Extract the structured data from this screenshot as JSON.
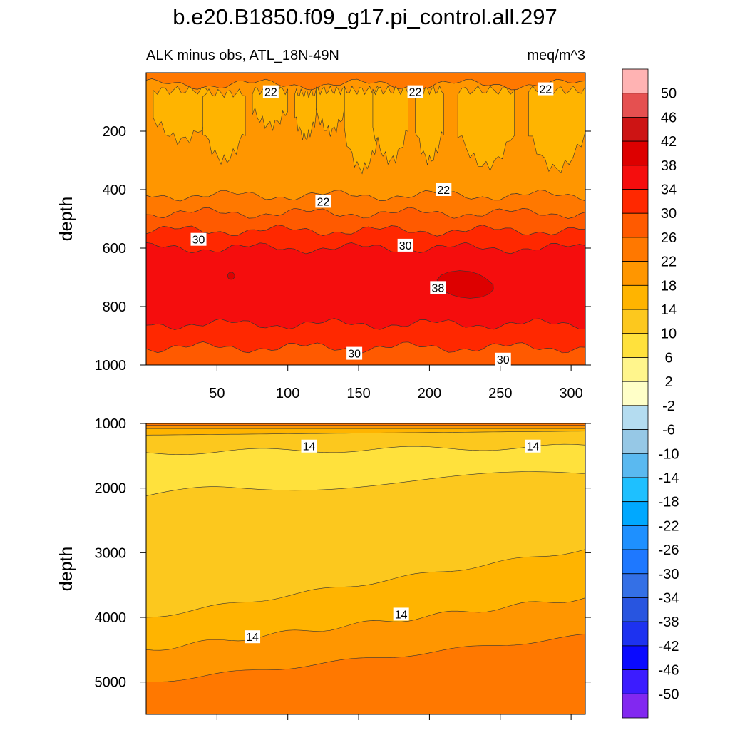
{
  "chart_data": {
    "type": "contour",
    "title": "b.e20.B1850.f09_g17.pi_control.all.297",
    "subtitle_left": "ALK minus obs, ATL_18N-49N",
    "units": "meq/m^3",
    "ylabel": "depth",
    "xlabel": "",
    "colorbar": {
      "levels": [
        50,
        46,
        42,
        38,
        34,
        30,
        26,
        22,
        18,
        14,
        10,
        6,
        2,
        -2,
        -6,
        -10,
        -14,
        -18,
        -22,
        -26,
        -30,
        -34,
        -38,
        -42,
        -46,
        -50
      ],
      "level_labels": [
        "50",
        "46",
        "42",
        "38",
        "34",
        "30",
        "26",
        "22",
        "18",
        "14",
        "10",
        "6",
        "2",
        "-2",
        "-6",
        "-10",
        "-14",
        "-18",
        "-22",
        "-26",
        "-30",
        "-34",
        "-38",
        "-42",
        "-46",
        "-50"
      ],
      "colors": [
        "#ffb3b3",
        "#e55050",
        "#cd1414",
        "#dd0000",
        "#f50d0d",
        "#ff2800",
        "#ff5a00",
        "#ff7800",
        "#ff9600",
        "#ffb400",
        "#fcc81e",
        "#ffe13c",
        "#fff58c",
        "#ffffc8",
        "#b4dcf0",
        "#96c8e6",
        "#5ab9f0",
        "#1ec0ff",
        "#00a8ff",
        "#1e90ff",
        "#1e78ff",
        "#3470e6",
        "#2855e0",
        "#1d32f0",
        "#0a0aff",
        "#3c1cff",
        "#8228f0"
      ]
    },
    "upper_panel": {
      "xlim": [
        0,
        310
      ],
      "ylim": [
        1000,
        0
      ],
      "xticks": [
        50,
        100,
        150,
        200,
        250,
        300
      ],
      "xtick_labels": [
        "50",
        "100",
        "150",
        "200",
        "250",
        "300"
      ],
      "yticks": [
        200,
        400,
        600,
        800,
        1000
      ],
      "ytick_labels": [
        "200",
        "400",
        "600",
        "800",
        "1000"
      ],
      "bands": [
        {
          "level": 22,
          "top": 0,
          "bottom": 40
        },
        {
          "level": 18,
          "top": 40,
          "bottom": 420
        },
        {
          "level": 22,
          "top": 420,
          "bottom": 480
        },
        {
          "level": 26,
          "top": 480,
          "bottom": 540
        },
        {
          "level": 30,
          "top": 540,
          "bottom": 600
        },
        {
          "level": 34,
          "top": 600,
          "bottom": 860
        },
        {
          "level": 30,
          "top": 860,
          "bottom": 940
        },
        {
          "level": 26,
          "top": 940,
          "bottom": 1000
        }
      ],
      "patches_14": [
        {
          "x0": 5,
          "x1": 45,
          "top": 60,
          "bottom": 230
        },
        {
          "x0": 40,
          "x1": 70,
          "top": 70,
          "bottom": 300
        },
        {
          "x0": 75,
          "x1": 100,
          "top": 60,
          "bottom": 180
        },
        {
          "x0": 105,
          "x1": 120,
          "top": 70,
          "bottom": 220
        },
        {
          "x0": 120,
          "x1": 140,
          "top": 60,
          "bottom": 200
        },
        {
          "x0": 140,
          "x1": 165,
          "top": 60,
          "bottom": 330
        },
        {
          "x0": 160,
          "x1": 185,
          "top": 60,
          "bottom": 300
        },
        {
          "x0": 190,
          "x1": 210,
          "top": 60,
          "bottom": 300
        },
        {
          "x0": 220,
          "x1": 260,
          "top": 60,
          "bottom": 320
        },
        {
          "x0": 270,
          "x1": 310,
          "top": 60,
          "bottom": 330
        }
      ],
      "patch_38": {
        "x0": 205,
        "x1": 245,
        "top": 680,
        "bottom": 770
      },
      "contour_labels": [
        {
          "text": "22",
          "x": 88,
          "y": 65
        },
        {
          "text": "22",
          "x": 190,
          "y": 65
        },
        {
          "text": "22",
          "x": 282,
          "y": 55
        },
        {
          "text": "22",
          "x": 125,
          "y": 440
        },
        {
          "text": "22",
          "x": 210,
          "y": 400
        },
        {
          "text": "30",
          "x": 37,
          "y": 570
        },
        {
          "text": "30",
          "x": 183,
          "y": 590
        },
        {
          "text": "38",
          "x": 206,
          "y": 735
        },
        {
          "text": "30",
          "x": 147,
          "y": 960
        },
        {
          "text": "30",
          "x": 252,
          "y": 980
        }
      ]
    },
    "lower_panel": {
      "xlim": [
        0,
        310
      ],
      "ylim": [
        5500,
        1000
      ],
      "yticks": [
        1000,
        2000,
        3000,
        4000,
        5000
      ],
      "ytick_labels": [
        "1000",
        "2000",
        "3000",
        "4000",
        "5000"
      ],
      "contour_labels": [
        {
          "text": "14",
          "x": 115,
          "y": 1350
        },
        {
          "text": "14",
          "x": 273,
          "y": 1350
        },
        {
          "text": "14",
          "x": 180,
          "y": 3950
        },
        {
          "text": "14",
          "x": 75,
          "y": 4300
        }
      ]
    }
  }
}
